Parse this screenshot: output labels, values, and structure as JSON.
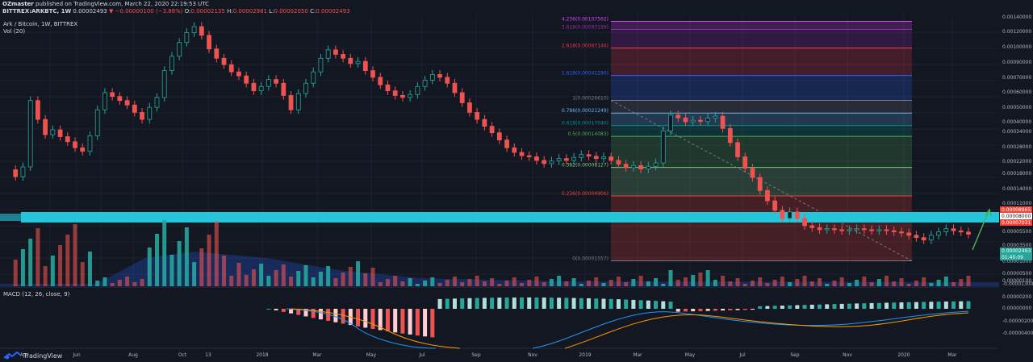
{
  "header": {
    "author": "OZmaster",
    "published": "published on TradingView.com, March 22, 2020 22:19:53 UTC",
    "symbol": "BITTREX:ARKBTC, 1W",
    "last": "0.00002493",
    "change": "▼ −0.00000100 (−3.86%)",
    "ohlc": {
      "o_label": "O:",
      "o": "0.00002135",
      "h_label": "H:",
      "h": "0.00002981",
      "l_label": "L:",
      "l": "0.00002050",
      "c_label": "C:",
      "c": "0.00002493"
    }
  },
  "legend": {
    "main": "Ark / Bitcoin, 1W, BITTREX",
    "vol": "Vol (20)",
    "macd": "MACD (12, 26, close, 9)"
  },
  "brand": {
    "logo_text": "TradingView",
    "icon": "tradingview-logo-icon"
  },
  "colors": {
    "background": "#131722",
    "up": "#26a69a",
    "down": "#ef5350",
    "support_band": "#26c6da",
    "signal_arrow": "#4caf50",
    "macd_line": "#2196f3",
    "signal_line": "#ff9800"
  },
  "chart_data": {
    "type": "candlestick",
    "symbol": "ARKBTC",
    "exchange": "BITTREX",
    "interval": "1W",
    "price_axis_ticks": [
      "0.00140000",
      "0.00120000",
      "0.00100000",
      "0.00090000",
      "0.00070000",
      "0.00060000",
      "0.00050000",
      "0.00040000",
      "0.00034000",
      "0.00028000",
      "0.00022000",
      "0.00018000",
      "0.00014000",
      "0.00011000",
      "0.00008000",
      "0.00005500",
      "0.00003500",
      "0.00002500",
      "0.00001000",
      "0.00000500",
      "0.00000100",
      "-0.00001300"
    ],
    "time_axis_labels": [
      "Apr",
      "Jun",
      "Aug",
      "Oct",
      "13",
      "2018",
      "Mar",
      "May",
      "Jul",
      "Sep",
      "Nov",
      "2019",
      "Mar",
      "May",
      "Jul",
      "Sep",
      "Nov",
      "2020",
      "Mar"
    ],
    "closes": [
      7.8e-05,
      6.9e-05,
      8.2e-05,
      0.000265,
      0.00019,
      0.000145,
      0.000158,
      0.00014,
      0.000128,
      0.000115,
      0.000108,
      0.000142,
      0.000225,
      0.000305,
      0.000285,
      0.000265,
      0.000245,
      0.000215,
      0.00019,
      0.000235,
      0.00028,
      0.00045,
      0.00058,
      0.00074,
      0.00088,
      0.00098,
      0.00084,
      0.00066,
      0.00056,
      0.0005,
      0.00044,
      0.00041,
      0.00036,
      0.000315,
      0.00034,
      0.000385,
      0.00036,
      0.00029,
      0.000225,
      0.0003,
      0.00036,
      0.00044,
      0.00056,
      0.00065,
      0.0006,
      0.00056,
      0.00051,
      0.00053,
      0.00045,
      0.0004,
      0.00035,
      0.000315,
      0.00029,
      0.00028,
      0.000295,
      0.00034,
      0.00038,
      0.00042,
      0.0004,
      0.00036,
      0.000305,
      0.000255,
      0.000215,
      0.00019,
      0.000168,
      0.00015,
      0.000132,
      0.000115,
      0.000106,
      0.0001,
      9.8e-05,
      9.2e-05,
      8.7e-05,
      9.1e-05,
      9.5e-05,
      9.2e-05,
      9.7e-05,
      0.000102,
      9.9e-05,
      9.5e-05,
      9.8e-05,
      9.2e-05,
      8.6e-05,
      8.1e-05,
      8.4e-05,
      7.9e-05,
      8.3e-05,
      8.8e-05,
      0.000155,
      0.000205,
      0.000195,
      0.000182,
      0.000187,
      0.000183,
      0.000194,
      0.000201,
      0.000162,
      0.000126,
      9.8e-05,
      8e-05,
      6.8e-05,
      5.4e-05,
      4.5e-05,
      3.8e-05,
      3.3e-05,
      3.7e-05,
      3.3e-05,
      2.9e-05,
      2.8e-05,
      2.7e-05,
      2.75e-05,
      2.7e-05,
      2.65e-05,
      2.7e-05,
      2.75e-05,
      2.7e-05,
      2.65e-05,
      2.7e-05,
      2.65e-05,
      2.6e-05,
      2.55e-05,
      2.45e-05,
      2.35e-05,
      2.25e-05,
      2.45e-05,
      2.6e-05,
      2.75e-05,
      2.65e-05,
      2.593e-05,
      2.493e-05
    ],
    "fibonacci": {
      "levels": [
        {
          "label": "0(0.00001557)",
          "price": 1.557e-05,
          "color": "#787b86"
        },
        {
          "label": "0.236(0.00004906)",
          "price": 4.906e-05,
          "color": "#f44336"
        },
        {
          "label": "0.382(0.00008127)",
          "price": 8.127e-05,
          "color": "#81c784"
        },
        {
          "label": "0.5(0.00014083)",
          "price": 0.00014083,
          "color": "#4caf50"
        },
        {
          "label": "0.618(0.00017040)",
          "price": 0.0001704,
          "color": "#009688"
        },
        {
          "label": "0.786(0.00021249)",
          "price": 0.00021249,
          "color": "#64b5f6"
        },
        {
          "label": "1(0.00026610)",
          "price": 0.0002661,
          "color": "#787b86"
        },
        {
          "label": "1.618(0.00041290)",
          "price": 0.0004129,
          "color": "#2962ff"
        },
        {
          "label": "2.618(0.00067146)",
          "price": 0.00067146,
          "color": "#f23645"
        },
        {
          "label": "3.618(0.00093199)",
          "price": 0.00093199,
          "color": "#9c27b0"
        },
        {
          "label": "4.236(0.00107562)",
          "price": 0.00107562,
          "color": "#e040fb"
        }
      ]
    },
    "support_zone": [
      7.031e-05,
      8.965e-05
    ],
    "price_labels": [
      {
        "text": "0.00008965",
        "color": "#f44336"
      },
      {
        "text": "0.00008000",
        "color": "#131722"
      },
      {
        "text": "0.00007031",
        "color": "#f44336"
      },
      {
        "text": "0.00002493",
        "color": "#26a69a"
      },
      {
        "text": "01:40:09",
        "color": "#26a69a"
      }
    ],
    "macd_axis_ticks": [
      "0.00000200",
      "0.00000000",
      "-0.00000200",
      "-0.00000400"
    ]
  }
}
